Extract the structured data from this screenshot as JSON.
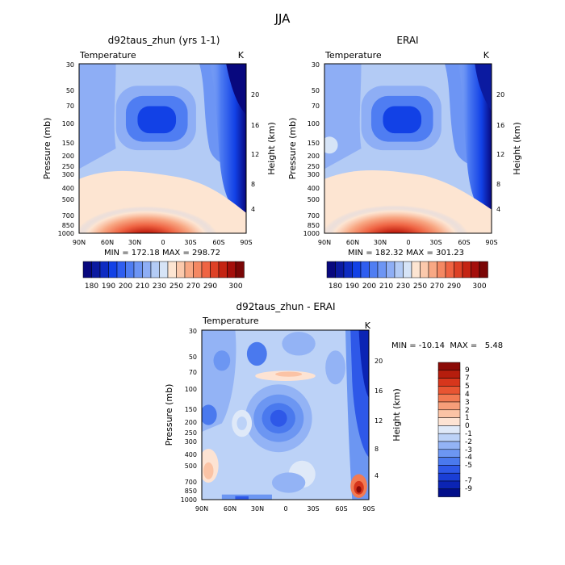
{
  "figure_title": "JJA",
  "colors": {
    "abs_scale": [
      "#08087e",
      "#0b1aa0",
      "#0e2cc2",
      "#1241e6",
      "#2f5ef0",
      "#4f7df2",
      "#6d95f4",
      "#8eaef5",
      "#b3cbf5",
      "#d6e4f7",
      "#fde5d2",
      "#fbc9ac",
      "#f8a884",
      "#f48863",
      "#ef6443",
      "#dd4126",
      "#c42413",
      "#a40f0b",
      "#7a0606"
    ],
    "diff_scale": [
      "#030f8a",
      "#0b24b4",
      "#1a3ed6",
      "#2e58e8",
      "#4a79ee",
      "#6c96f2",
      "#93b3f5",
      "#bcd2f7",
      "#dfe9f8",
      "#fde3d3",
      "#fbc3a5",
      "#f79e79",
      "#f27a52",
      "#e85532",
      "#d7361c",
      "#b51d0d",
      "#8b0a06"
    ]
  },
  "panels": [
    {
      "title": "d92taus_zhun (yrs 1-1)",
      "left_label": "Temperature",
      "right_label": "K",
      "ylabel": "Pressure (mb)",
      "ylabel_right": "Height (km)",
      "stats": "MIN = 172.18   MAX = 298.72",
      "colorbar_labels": [
        "180",
        "190",
        "200",
        "210",
        "230",
        "250",
        "270",
        "290",
        "300"
      ]
    },
    {
      "title": "ERAI",
      "left_label": "Temperature",
      "right_label": "K",
      "ylabel": "Pressure (mb)",
      "ylabel_right": "Height (km)",
      "stats": "MIN = 182.32   MAX = 301.23",
      "colorbar_labels": [
        "180",
        "190",
        "200",
        "210",
        "230",
        "250",
        "270",
        "290",
        "300"
      ]
    },
    {
      "title": "d92taus_zhun - ERAI",
      "left_label": "Temperature",
      "right_label": "K",
      "ylabel": "Pressure (mb)",
      "ylabel_right": "Height (km)",
      "stats": "MIN = -10.14  MAX =   5.48",
      "colorbar_labels": [
        "9",
        "7",
        "5",
        "4",
        "3",
        "2",
        "1",
        "0",
        "-1",
        "-2",
        "-3",
        "-4",
        "-5",
        "-7",
        "-9"
      ]
    }
  ],
  "chart_data": [
    {
      "type": "heatmap",
      "title": "d92taus_zhun (yrs 1-1)",
      "xlabel": "",
      "ylabel": "Pressure (mb)",
      "ylabel_right": "Height (km)",
      "x_ticks": [
        "90N",
        "60N",
        "30N",
        "0",
        "30S",
        "60S",
        "90S"
      ],
      "y_ticks": [
        "30",
        "50",
        "70",
        "100",
        "150",
        "200",
        "250",
        "300",
        "400",
        "500",
        "700",
        "850",
        "1000"
      ],
      "y_ticks_right": [
        "20",
        "16",
        "12",
        "8",
        "4"
      ],
      "ylim": [
        1000,
        30
      ],
      "contour_levels": [
        180,
        185,
        190,
        195,
        200,
        205,
        210,
        215,
        220,
        230,
        240,
        250,
        260,
        270,
        280,
        285,
        290,
        295,
        300
      ],
      "min": 172.18,
      "max": 298.72
    },
    {
      "type": "heatmap",
      "title": "ERAI",
      "xlabel": "",
      "ylabel": "Pressure (mb)",
      "ylabel_right": "Height (km)",
      "x_ticks": [
        "90N",
        "60N",
        "30N",
        "0",
        "30S",
        "60S",
        "90S"
      ],
      "y_ticks": [
        "30",
        "50",
        "70",
        "100",
        "150",
        "200",
        "250",
        "300",
        "400",
        "500",
        "700",
        "850",
        "1000"
      ],
      "y_ticks_right": [
        "20",
        "16",
        "12",
        "8",
        "4"
      ],
      "ylim": [
        1000,
        30
      ],
      "contour_levels": [
        180,
        185,
        190,
        195,
        200,
        205,
        210,
        215,
        220,
        230,
        240,
        250,
        260,
        270,
        280,
        285,
        290,
        295,
        300
      ],
      "min": 182.32,
      "max": 301.23
    },
    {
      "type": "heatmap",
      "title": "d92taus_zhun - ERAI",
      "xlabel": "",
      "ylabel": "Pressure (mb)",
      "ylabel_right": "Height (km)",
      "x_ticks": [
        "90N",
        "60N",
        "30N",
        "0",
        "30S",
        "60S",
        "90S"
      ],
      "y_ticks": [
        "30",
        "50",
        "70",
        "100",
        "150",
        "200",
        "250",
        "300",
        "400",
        "500",
        "700",
        "850",
        "1000"
      ],
      "y_ticks_right": [
        "20",
        "16",
        "12",
        "8",
        "4"
      ],
      "ylim": [
        1000,
        30
      ],
      "contour_levels": [
        -9,
        -8,
        -7,
        -6,
        -5,
        -4,
        -3,
        -2,
        -1,
        0,
        1,
        2,
        3,
        4,
        5,
        7,
        9
      ],
      "min": -10.14,
      "max": 5.48
    }
  ]
}
